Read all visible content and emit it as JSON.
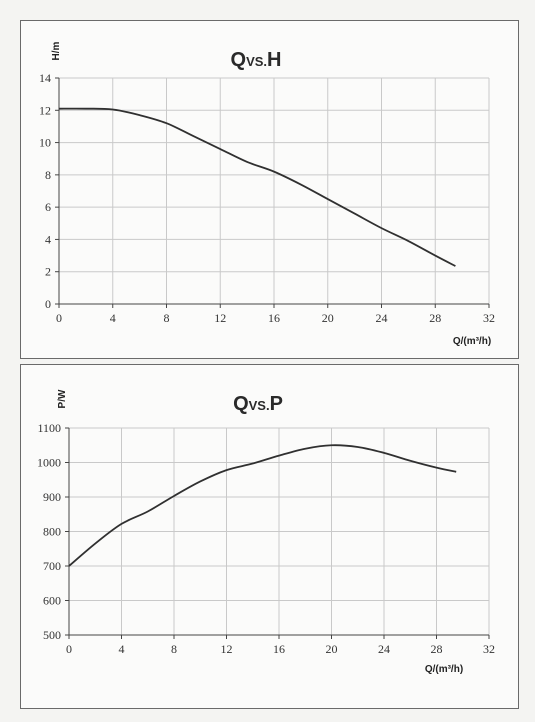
{
  "chart_data": [
    {
      "type": "line",
      "title_main": "Q",
      "title_sub": "VS.",
      "title_end": "H",
      "xlabel": "Q/(m³/h)",
      "ylabel": "H/m",
      "xlim": [
        0,
        32
      ],
      "ylim": [
        0,
        14
      ],
      "x_ticks": [
        0,
        4,
        8,
        12,
        16,
        20,
        24,
        28,
        32
      ],
      "y_ticks": [
        0,
        2,
        4,
        6,
        8,
        10,
        12,
        14
      ],
      "grid": true,
      "series": [
        {
          "x": [
            0,
            2,
            4,
            6,
            8,
            10,
            12,
            14,
            16,
            18,
            20,
            22,
            24,
            26,
            28,
            29.5
          ],
          "values": [
            12.1,
            12.1,
            12.05,
            11.7,
            11.2,
            10.4,
            9.6,
            8.8,
            8.2,
            7.4,
            6.5,
            5.6,
            4.7,
            3.9,
            3.0,
            2.35
          ]
        }
      ]
    },
    {
      "type": "line",
      "title_main": "Q",
      "title_sub": "VS.",
      "title_end": "P",
      "xlabel": "Q/(m³/h)",
      "ylabel": "P/W",
      "xlim": [
        0,
        32
      ],
      "ylim": [
        500,
        1100
      ],
      "x_ticks": [
        0,
        4,
        8,
        12,
        16,
        20,
        24,
        28,
        32
      ],
      "y_ticks": [
        500,
        600,
        700,
        800,
        900,
        1000,
        1100
      ],
      "grid": true,
      "series": [
        {
          "x": [
            0,
            2,
            4,
            6,
            8,
            10,
            12,
            14,
            16,
            18,
            20,
            22,
            24,
            26,
            28,
            29.5
          ],
          "values": [
            700,
            765,
            822,
            858,
            903,
            945,
            978,
            997,
            1020,
            1040,
            1050,
            1045,
            1028,
            1005,
            985,
            973
          ]
        }
      ]
    }
  ]
}
